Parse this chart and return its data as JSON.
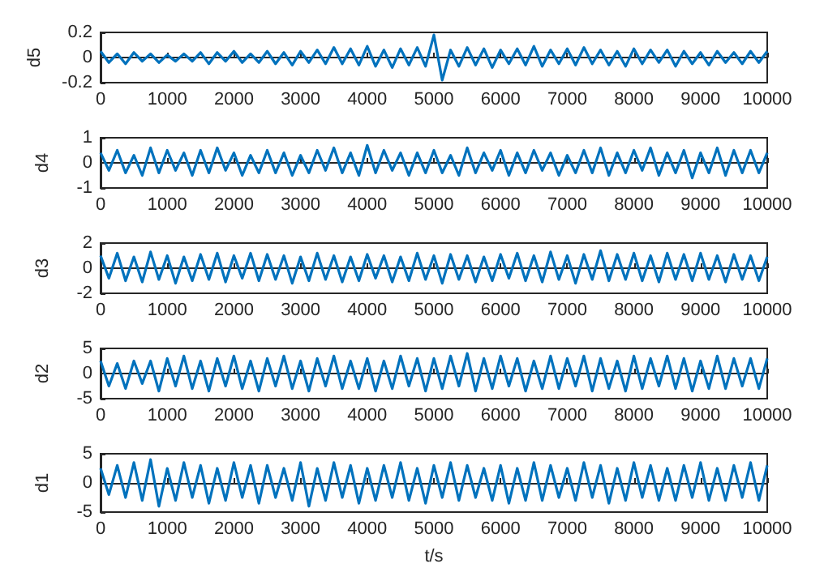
{
  "chart_data": [
    {
      "type": "line",
      "ylabel": "d5",
      "x": [
        0,
        125,
        250,
        375,
        500,
        625,
        750,
        875,
        1000,
        1125,
        1250,
        1375,
        1500,
        1625,
        1750,
        1875,
        2000,
        2125,
        2250,
        2375,
        2500,
        2625,
        2750,
        2875,
        3000,
        3125,
        3250,
        3375,
        3500,
        3625,
        3750,
        3875,
        4000,
        4125,
        4250,
        4375,
        4500,
        4625,
        4750,
        4875,
        5000,
        5125,
        5250,
        5375,
        5500,
        5625,
        5750,
        5875,
        6000,
        6125,
        6250,
        6375,
        6500,
        6625,
        6750,
        6875,
        7000,
        7125,
        7250,
        7375,
        7500,
        7625,
        7750,
        7875,
        8000,
        8125,
        8250,
        8375,
        8500,
        8625,
        8750,
        8875,
        9000,
        9125,
        9250,
        9375,
        9500,
        9625,
        9750,
        9875,
        10000
      ],
      "xlim": [
        0,
        10000
      ],
      "xticks": [
        0,
        1000,
        2000,
        3000,
        4000,
        5000,
        6000,
        7000,
        8000,
        9000,
        10000
      ],
      "ylim": [
        -0.2,
        0.2
      ],
      "yticks": [
        -0.2,
        0,
        0.2
      ],
      "marker": "none",
      "series": [
        {
          "color": "#0072bd",
          "values": [
            0.05,
            -0.04,
            0.03,
            -0.05,
            0.04,
            -0.03,
            0.03,
            -0.04,
            0.02,
            -0.03,
            0.03,
            -0.03,
            0.04,
            -0.05,
            0.04,
            -0.03,
            0.05,
            -0.04,
            0.03,
            -0.04,
            0.05,
            -0.05,
            0.04,
            -0.06,
            0.05,
            -0.04,
            0.06,
            -0.05,
            0.08,
            -0.05,
            0.07,
            -0.06,
            0.09,
            -0.07,
            0.06,
            -0.08,
            0.07,
            -0.06,
            0.08,
            -0.07,
            0.18,
            -0.18,
            0.06,
            -0.07,
            0.08,
            -0.06,
            0.07,
            -0.08,
            0.06,
            -0.05,
            0.07,
            -0.06,
            0.09,
            -0.07,
            0.06,
            -0.05,
            0.07,
            -0.06,
            0.08,
            -0.05,
            0.06,
            -0.06,
            0.05,
            -0.07,
            0.07,
            -0.05,
            0.06,
            -0.04,
            0.06,
            -0.07,
            0.05,
            -0.05,
            0.04,
            -0.06,
            0.05,
            -0.04,
            0.04,
            -0.05,
            0.05,
            -0.04,
            0.05
          ]
        }
      ]
    },
    {
      "type": "line",
      "ylabel": "d4",
      "x": [
        0,
        125,
        250,
        375,
        500,
        625,
        750,
        875,
        1000,
        1125,
        1250,
        1375,
        1500,
        1625,
        1750,
        1875,
        2000,
        2125,
        2250,
        2375,
        2500,
        2625,
        2750,
        2875,
        3000,
        3125,
        3250,
        3375,
        3500,
        3625,
        3750,
        3875,
        4000,
        4125,
        4250,
        4375,
        4500,
        4625,
        4750,
        4875,
        5000,
        5125,
        5250,
        5375,
        5500,
        5625,
        5750,
        5875,
        6000,
        6125,
        6250,
        6375,
        6500,
        6625,
        6750,
        6875,
        7000,
        7125,
        7250,
        7375,
        7500,
        7625,
        7750,
        7875,
        8000,
        8125,
        8250,
        8375,
        8500,
        8625,
        8750,
        8875,
        9000,
        9125,
        9250,
        9375,
        9500,
        9625,
        9750,
        9875,
        10000
      ],
      "xlim": [
        0,
        10000
      ],
      "xticks": [
        0,
        1000,
        2000,
        3000,
        4000,
        5000,
        6000,
        7000,
        8000,
        9000,
        10000
      ],
      "ylim": [
        -1,
        1
      ],
      "yticks": [
        -1,
        0,
        1
      ],
      "marker": "none",
      "series": [
        {
          "color": "#0072bd",
          "values": [
            0.4,
            -0.3,
            0.5,
            -0.4,
            0.3,
            -0.5,
            0.6,
            -0.4,
            0.5,
            -0.3,
            0.4,
            -0.5,
            0.5,
            -0.4,
            0.6,
            -0.3,
            0.4,
            -0.5,
            0.3,
            -0.4,
            0.5,
            -0.4,
            0.4,
            -0.5,
            0.3,
            -0.4,
            0.5,
            -0.3,
            0.6,
            -0.4,
            0.4,
            -0.5,
            0.7,
            -0.4,
            0.5,
            -0.3,
            0.4,
            -0.5,
            0.4,
            -0.4,
            0.5,
            -0.4,
            0.3,
            -0.5,
            0.6,
            -0.4,
            0.4,
            -0.3,
            0.5,
            -0.5,
            0.4,
            -0.4,
            0.5,
            -0.3,
            0.4,
            -0.5,
            0.3,
            -0.4,
            0.5,
            -0.4,
            0.6,
            -0.5,
            0.4,
            -0.4,
            0.5,
            -0.3,
            0.6,
            -0.5,
            0.4,
            -0.4,
            0.5,
            -0.6,
            0.4,
            -0.4,
            0.6,
            -0.5,
            0.5,
            -0.4,
            0.5,
            -0.4,
            0.4
          ]
        }
      ]
    },
    {
      "type": "line",
      "ylabel": "d3",
      "x": [
        0,
        125,
        250,
        375,
        500,
        625,
        750,
        875,
        1000,
        1125,
        1250,
        1375,
        1500,
        1625,
        1750,
        1875,
        2000,
        2125,
        2250,
        2375,
        2500,
        2625,
        2750,
        2875,
        3000,
        3125,
        3250,
        3375,
        3500,
        3625,
        3750,
        3875,
        4000,
        4125,
        4250,
        4375,
        4500,
        4625,
        4750,
        4875,
        5000,
        5125,
        5250,
        5375,
        5500,
        5625,
        5750,
        5875,
        6000,
        6125,
        6250,
        6375,
        6500,
        6625,
        6750,
        6875,
        7000,
        7125,
        7250,
        7375,
        7500,
        7625,
        7750,
        7875,
        8000,
        8125,
        8250,
        8375,
        8500,
        8625,
        8750,
        8875,
        9000,
        9125,
        9250,
        9375,
        9500,
        9625,
        9750,
        9875,
        10000
      ],
      "xlim": [
        0,
        10000
      ],
      "xticks": [
        0,
        1000,
        2000,
        3000,
        4000,
        5000,
        6000,
        7000,
        8000,
        9000,
        10000
      ],
      "ylim": [
        -2,
        2
      ],
      "yticks": [
        -2,
        0,
        2
      ],
      "marker": "none",
      "series": [
        {
          "color": "#0072bd",
          "values": [
            1.0,
            -0.8,
            1.2,
            -1.0,
            0.9,
            -1.1,
            1.3,
            -0.9,
            1.0,
            -1.2,
            0.9,
            -1.0,
            1.1,
            -0.9,
            1.2,
            -1.1,
            1.0,
            -0.8,
            1.2,
            -1.0,
            1.1,
            -0.9,
            1.0,
            -1.2,
            0.9,
            -1.0,
            1.2,
            -0.9,
            1.0,
            -1.1,
            0.9,
            -1.0,
            1.1,
            -0.8,
            1.0,
            -1.1,
            0.9,
            -1.0,
            1.2,
            -0.9,
            1.0,
            -1.2,
            1.1,
            -0.9,
            1.0,
            -1.1,
            0.9,
            -1.0,
            1.1,
            -0.8,
            1.2,
            -1.0,
            1.0,
            -1.1,
            1.3,
            -0.9,
            1.0,
            -1.2,
            1.1,
            -0.9,
            1.4,
            -1.0,
            1.1,
            -0.9,
            1.2,
            -1.0,
            1.0,
            -1.1,
            1.2,
            -0.9,
            1.1,
            -1.0,
            1.2,
            -0.9,
            1.0,
            -1.1,
            1.1,
            -0.9,
            1.0,
            -1.0,
            0.9
          ]
        }
      ]
    },
    {
      "type": "line",
      "ylabel": "d2",
      "x": [
        0,
        125,
        250,
        375,
        500,
        625,
        750,
        875,
        1000,
        1125,
        1250,
        1375,
        1500,
        1625,
        1750,
        1875,
        2000,
        2125,
        2250,
        2375,
        2500,
        2625,
        2750,
        2875,
        3000,
        3125,
        3250,
        3375,
        3500,
        3625,
        3750,
        3875,
        4000,
        4125,
        4250,
        4375,
        4500,
        4625,
        4750,
        4875,
        5000,
        5125,
        5250,
        5375,
        5500,
        5625,
        5750,
        5875,
        6000,
        6125,
        6250,
        6375,
        6500,
        6625,
        6750,
        6875,
        7000,
        7125,
        7250,
        7375,
        7500,
        7625,
        7750,
        7875,
        8000,
        8125,
        8250,
        8375,
        8500,
        8625,
        8750,
        8875,
        9000,
        9125,
        9250,
        9375,
        9500,
        9625,
        9750,
        9875,
        10000
      ],
      "xlim": [
        0,
        10000
      ],
      "xticks": [
        0,
        1000,
        2000,
        3000,
        4000,
        5000,
        6000,
        7000,
        8000,
        9000,
        10000
      ],
      "ylim": [
        -5,
        5
      ],
      "yticks": [
        -5,
        0,
        5
      ],
      "marker": "none",
      "series": [
        {
          "color": "#0072bd",
          "values": [
            2.5,
            -2.5,
            2.0,
            -3.0,
            2.5,
            -2.0,
            2.5,
            -3.5,
            3.0,
            -2.5,
            3.5,
            -3.0,
            2.5,
            -3.5,
            3.0,
            -2.5,
            3.5,
            -3.0,
            2.5,
            -3.5,
            3.0,
            -2.5,
            3.5,
            -3.0,
            2.5,
            -3.5,
            3.0,
            -2.5,
            3.5,
            -3.0,
            2.5,
            -3.0,
            3.0,
            -3.5,
            2.5,
            -3.0,
            3.5,
            -2.5,
            3.0,
            -3.5,
            3.0,
            -3.0,
            3.5,
            -2.5,
            4.0,
            -3.5,
            3.0,
            -3.0,
            3.5,
            -2.5,
            3.0,
            -3.5,
            2.5,
            -3.0,
            3.5,
            -3.0,
            3.0,
            -2.5,
            3.5,
            -3.5,
            3.0,
            -3.0,
            2.5,
            -3.5,
            3.5,
            -3.0,
            3.0,
            -2.5,
            3.5,
            -3.0,
            3.0,
            -3.5,
            2.5,
            -3.0,
            3.5,
            -3.0,
            3.0,
            -2.5,
            3.0,
            -3.0,
            3.0
          ]
        }
      ]
    },
    {
      "type": "line",
      "ylabel": "d1",
      "xlabel": "t/s",
      "x": [
        0,
        125,
        250,
        375,
        500,
        625,
        750,
        875,
        1000,
        1125,
        1250,
        1375,
        1500,
        1625,
        1750,
        1875,
        2000,
        2125,
        2250,
        2375,
        2500,
        2625,
        2750,
        2875,
        3000,
        3125,
        3250,
        3375,
        3500,
        3625,
        3750,
        3875,
        4000,
        4125,
        4250,
        4375,
        4500,
        4625,
        4750,
        4875,
        5000,
        5125,
        5250,
        5375,
        5500,
        5625,
        5750,
        5875,
        6000,
        6125,
        6250,
        6375,
        6500,
        6625,
        6750,
        6875,
        7000,
        7125,
        7250,
        7375,
        7500,
        7625,
        7750,
        7875,
        8000,
        8125,
        8250,
        8375,
        8500,
        8625,
        8750,
        8875,
        9000,
        9125,
        9250,
        9375,
        9500,
        9625,
        9750,
        9875,
        10000
      ],
      "xlim": [
        0,
        10000
      ],
      "xticks": [
        0,
        1000,
        2000,
        3000,
        4000,
        5000,
        6000,
        7000,
        8000,
        9000,
        10000
      ],
      "ylim": [
        -5,
        5
      ],
      "yticks": [
        -5,
        0,
        5
      ],
      "marker": "none",
      "series": [
        {
          "color": "#0072bd",
          "values": [
            2.5,
            -2.0,
            3.0,
            -2.5,
            3.5,
            -3.0,
            4.0,
            -4.0,
            2.5,
            -3.0,
            3.5,
            -2.5,
            3.0,
            -3.5,
            2.5,
            -3.0,
            3.5,
            -2.5,
            3.0,
            -3.5,
            3.0,
            -2.5,
            2.5,
            -3.0,
            3.5,
            -4.0,
            2.5,
            -3.0,
            3.5,
            -2.5,
            3.0,
            -3.5,
            2.5,
            -3.0,
            3.0,
            -2.5,
            3.5,
            -3.0,
            2.5,
            -3.5,
            3.0,
            -2.5,
            3.5,
            -3.0,
            3.0,
            -2.5,
            2.5,
            -3.0,
            3.0,
            -3.5,
            2.5,
            -3.0,
            3.5,
            -3.0,
            3.0,
            -2.5,
            2.5,
            -3.0,
            3.5,
            -2.5,
            3.0,
            -3.5,
            2.5,
            -3.0,
            3.5,
            -2.5,
            3.0,
            -3.0,
            2.5,
            -3.0,
            3.0,
            -2.5,
            3.5,
            -3.0,
            2.5,
            -3.0,
            3.0,
            -2.5,
            3.5,
            -3.0,
            3.0
          ]
        }
      ]
    }
  ]
}
